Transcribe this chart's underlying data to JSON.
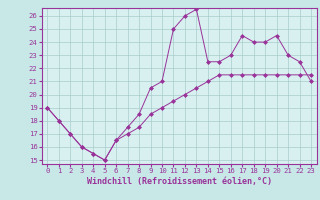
{
  "xlabel": "Windchill (Refroidissement éolien,°C)",
  "line1_x": [
    0,
    1,
    2,
    3,
    4,
    5,
    6,
    7,
    8,
    9,
    10,
    11,
    12,
    13,
    14,
    15,
    16,
    17,
    18,
    19,
    20,
    21,
    22,
    23
  ],
  "line1_y": [
    19,
    18,
    17,
    16,
    15.5,
    15,
    16.5,
    17.5,
    18.5,
    20.5,
    21,
    25,
    26,
    26.5,
    22.5,
    22.5,
    23,
    24.5,
    24,
    24,
    24.5,
    23,
    22.5,
    21
  ],
  "line2_x": [
    0,
    1,
    2,
    3,
    4,
    5,
    6,
    7,
    8,
    9,
    10,
    11,
    12,
    13,
    14,
    15,
    16,
    17,
    18,
    19,
    20,
    21,
    22,
    23
  ],
  "line2_y": [
    19,
    18,
    17,
    16,
    15.5,
    15,
    16.5,
    17,
    17.5,
    18.5,
    19,
    19.5,
    20,
    20.5,
    21,
    21.5,
    21.5,
    21.5,
    21.5,
    21.5,
    21.5,
    21.5,
    21.5,
    21.5
  ],
  "line_color": "#993399",
  "bg_color": "#c8e8e8",
  "grid_color": "#aacccc",
  "plot_bg": "#d8f0f0",
  "xlim_min": -0.5,
  "xlim_max": 23.5,
  "ylim_min": 14.7,
  "ylim_max": 26.6,
  "xticks": [
    0,
    1,
    2,
    3,
    4,
    5,
    6,
    7,
    8,
    9,
    10,
    11,
    12,
    13,
    14,
    15,
    16,
    17,
    18,
    19,
    20,
    21,
    22,
    23
  ],
  "yticks": [
    15,
    16,
    17,
    18,
    19,
    20,
    21,
    22,
    23,
    24,
    25,
    26
  ],
  "tick_fontsize": 5.2,
  "xlabel_fontsize": 6.0,
  "marker": "D",
  "markersize": 2.0,
  "linewidth": 0.7
}
